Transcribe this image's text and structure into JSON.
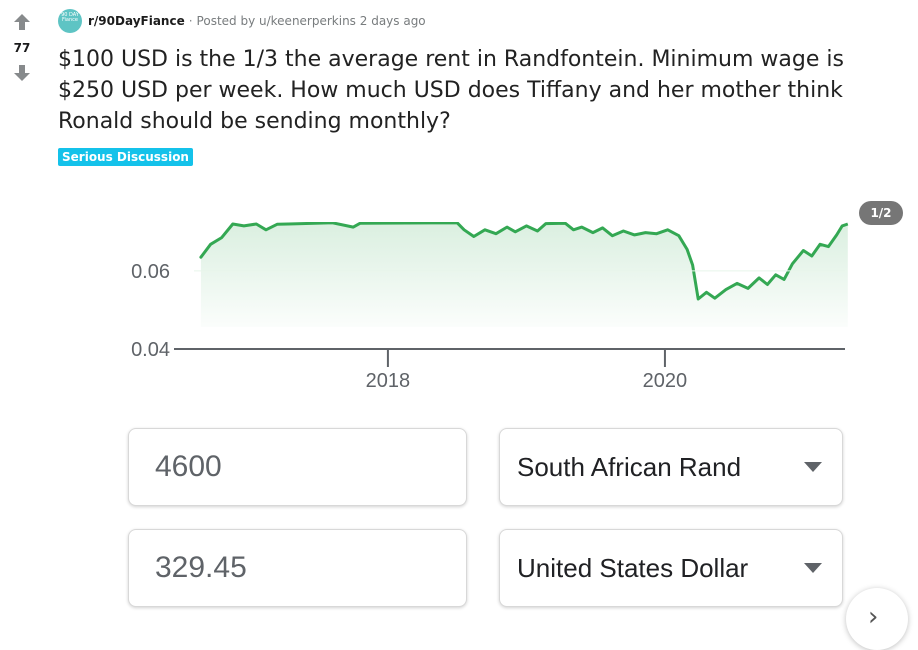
{
  "post": {
    "score": "77",
    "subreddit": "r/90DayFiance",
    "avatar_text": "90 DAY Fiance",
    "posted_by": "Posted by u/keenerperkins 2 days ago",
    "title": "$100 USD is the 1/3 the average rent in Randfontein. Minimum wage is $250 USD per week. How much USD does Tiffany and her mother think Ronald should be sending monthly?",
    "flair": "Serious Discussion",
    "gallery_counter": "1/2"
  },
  "converter": {
    "amount_from": "4600",
    "currency_from": "South African Rand",
    "amount_to": "329.45",
    "currency_to": "United States Dollar"
  },
  "colors": {
    "line": "#34a853",
    "flair_bg": "#14c2ea",
    "upvote": "#878a8c"
  },
  "icons": [
    "upvote-icon",
    "downvote-icon",
    "dropdown-caret-icon",
    "chevron-right-icon"
  ],
  "chart_data": {
    "type": "line",
    "title": "",
    "xlabel": "",
    "ylabel": "",
    "x_ticks": [
      "2018",
      "2020"
    ],
    "y_ticks": [
      "0.04",
      "0.06"
    ],
    "ylim": [
      0.04,
      0.0725
    ],
    "xlim": [
      2016.6,
      2021.3
    ],
    "grid": false,
    "series": [
      {
        "values": [
          [
            2016.65,
            0.0635
          ],
          [
            2016.72,
            0.0668
          ],
          [
            2016.8,
            0.0685
          ],
          [
            2016.88,
            0.072
          ],
          [
            2016.96,
            0.0715
          ],
          [
            2017.05,
            0.072
          ],
          [
            2017.12,
            0.0705
          ],
          [
            2017.2,
            0.0719
          ],
          [
            2017.28,
            0.072
          ],
          [
            2017.6,
            0.0723
          ],
          [
            2017.75,
            0.0712
          ],
          [
            2017.8,
            0.0722
          ],
          [
            2018.5,
            0.0723
          ],
          [
            2018.55,
            0.0705
          ],
          [
            2018.62,
            0.0688
          ],
          [
            2018.7,
            0.0705
          ],
          [
            2018.78,
            0.0695
          ],
          [
            2018.86,
            0.0712
          ],
          [
            2018.92,
            0.07
          ],
          [
            2019.0,
            0.0715
          ],
          [
            2019.08,
            0.0702
          ],
          [
            2019.14,
            0.0721
          ],
          [
            2019.28,
            0.0722
          ],
          [
            2019.34,
            0.0705
          ],
          [
            2019.4,
            0.0712
          ],
          [
            2019.48,
            0.0698
          ],
          [
            2019.55,
            0.071
          ],
          [
            2019.62,
            0.069
          ],
          [
            2019.7,
            0.0702
          ],
          [
            2019.78,
            0.0692
          ],
          [
            2019.86,
            0.0698
          ],
          [
            2019.94,
            0.0695
          ],
          [
            2020.02,
            0.0705
          ],
          [
            2020.1,
            0.069
          ],
          [
            2020.16,
            0.0655
          ],
          [
            2020.2,
            0.0615
          ],
          [
            2020.24,
            0.0528
          ],
          [
            2020.3,
            0.0545
          ],
          [
            2020.36,
            0.053
          ],
          [
            2020.44,
            0.0552
          ],
          [
            2020.52,
            0.0568
          ],
          [
            2020.6,
            0.0555
          ],
          [
            2020.68,
            0.0582
          ],
          [
            2020.74,
            0.0565
          ],
          [
            2020.8,
            0.059
          ],
          [
            2020.86,
            0.0578
          ],
          [
            2020.92,
            0.0618
          ],
          [
            2021.0,
            0.0652
          ],
          [
            2021.06,
            0.0638
          ],
          [
            2021.12,
            0.0668
          ],
          [
            2021.18,
            0.0662
          ],
          [
            2021.24,
            0.0692
          ],
          [
            2021.28,
            0.0715
          ],
          [
            2021.32,
            0.072
          ]
        ]
      }
    ]
  }
}
